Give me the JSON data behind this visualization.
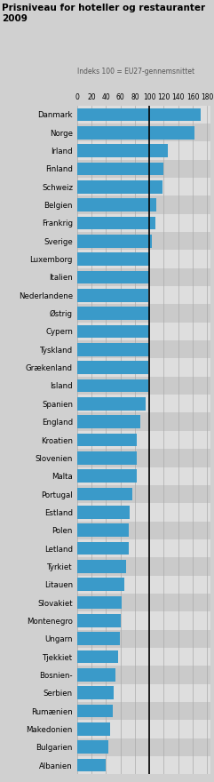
{
  "title": "Prisniveau for hoteller og restauranter\n2009",
  "subtitle": "Indeks 100 = EU27-gennemsnittet",
  "xlabel_ticks": [
    0,
    20,
    40,
    60,
    80,
    100,
    120,
    140,
    160,
    180
  ],
  "reference_line": 100,
  "bar_color": "#3A9AC9",
  "row_color_even": "#DCDCDC",
  "row_color_odd": "#C8C8C8",
  "fig_bg": "#D0D0D0",
  "categories": [
    "Danmark",
    "Norge",
    "Irland",
    "Finland",
    "Schweiz",
    "Belgien",
    "Frankrig",
    "Sverige",
    "Luxemborg",
    "Italien",
    "Nederlandene",
    "Østrig",
    "Cypern",
    "Tyskland",
    "Grækenland",
    "Island",
    "Spanien",
    "England",
    "Kroatien",
    "Slovenien",
    "Malta",
    "Portugal",
    "Estland",
    "Polen",
    "Letland",
    "Tyrkiet",
    "Litauen",
    "Slovakiet",
    "Montenegro",
    "Ungarn",
    "Tjekkiet",
    "Bosnien-",
    "Serbien",
    "Rumænien",
    "Makedonien",
    "Bulgarien",
    "Albanien"
  ],
  "values": [
    171,
    162,
    125,
    120,
    118,
    110,
    108,
    103,
    101,
    100,
    99,
    101,
    100,
    100,
    99,
    99,
    95,
    88,
    83,
    82,
    82,
    77,
    73,
    72,
    71,
    68,
    65,
    62,
    60,
    59,
    57,
    53,
    51,
    49,
    46,
    43,
    40
  ],
  "xlim": [
    0,
    185
  ]
}
